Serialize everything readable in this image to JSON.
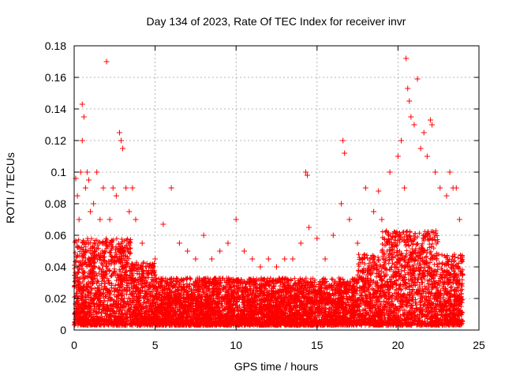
{
  "chart_data": {
    "type": "scatter",
    "title": "Day 134 of 2023, Rate Of TEC Index for receiver invr",
    "xlabel": "GPS time / hours",
    "ylabel": "ROTI / TECUs",
    "xlim": [
      0,
      25
    ],
    "ylim": [
      0,
      0.18
    ],
    "xticks": [
      0,
      5,
      10,
      15,
      20,
      25
    ],
    "xtick_labels": [
      "0",
      "5",
      "10",
      "15",
      "20",
      "25"
    ],
    "yticks": [
      0,
      0.02,
      0.04,
      0.06,
      0.08,
      0.1,
      0.12,
      0.14,
      0.16,
      0.18
    ],
    "ytick_labels": [
      "0",
      "0.02",
      "0.04",
      "0.06",
      "0.08",
      "0.1",
      "0.12",
      "0.14",
      "0.16",
      "0.18"
    ],
    "grid": true,
    "marker": "plus",
    "color": "#ff0000",
    "series": [
      {
        "x": [
          0.1,
          0.2,
          0.3,
          0.4,
          0.5,
          0.5,
          0.6,
          0.7,
          0.8,
          0.9,
          1.0,
          1.2,
          1.4,
          1.6,
          1.8,
          2.0,
          2.2,
          2.4,
          2.6,
          2.8,
          2.9,
          3.0,
          3.2,
          3.4,
          3.6,
          3.8,
          4.2,
          4.6,
          5.0,
          5.5,
          6.0,
          6.5,
          7.0,
          7.5,
          8.0,
          8.5,
          9.0,
          9.5,
          10.0,
          10.5,
          11.0,
          11.5,
          12.0,
          12.5,
          13.0,
          13.5,
          14.0,
          14.3,
          14.4,
          14.5,
          15.0,
          15.5,
          16.0,
          16.5,
          16.6,
          16.7,
          17.0,
          17.5,
          18.0,
          18.5,
          18.8,
          19.0,
          19.5,
          20.0,
          20.2,
          20.4,
          20.5,
          20.6,
          20.7,
          20.8,
          21.0,
          21.2,
          21.4,
          21.6,
          21.8,
          22.0,
          22.1,
          22.3,
          22.6,
          23.0,
          23.2,
          23.4,
          23.6,
          23.8,
          24.0,
          0.3,
          0.6,
          1.1,
          1.5,
          2.1,
          2.5,
          3.1,
          3.5,
          4.0,
          5.2,
          6.2,
          7.8,
          9.8,
          10.1,
          12.4,
          14.2,
          16.5,
          18.2,
          19.8,
          20.6,
          21.5,
          22.2,
          23.1,
          23.9
        ],
        "y": [
          0.096,
          0.085,
          0.07,
          0.1,
          0.143,
          0.12,
          0.135,
          0.09,
          0.1,
          0.095,
          0.075,
          0.08,
          0.1,
          0.07,
          0.09,
          0.17,
          0.07,
          0.09,
          0.085,
          0.125,
          0.12,
          0.115,
          0.09,
          0.075,
          0.09,
          0.07,
          0.055,
          0.04,
          0.045,
          0.067,
          0.09,
          0.055,
          0.05,
          0.045,
          0.06,
          0.045,
          0.05,
          0.055,
          0.07,
          0.05,
          0.045,
          0.04,
          0.045,
          0.04,
          0.045,
          0.045,
          0.055,
          0.1,
          0.098,
          0.065,
          0.058,
          0.045,
          0.06,
          0.08,
          0.12,
          0.112,
          0.07,
          0.055,
          0.09,
          0.075,
          0.088,
          0.07,
          0.1,
          0.11,
          0.12,
          0.09,
          0.172,
          0.153,
          0.145,
          0.135,
          0.13,
          0.159,
          0.115,
          0.125,
          0.11,
          0.133,
          0.13,
          0.1,
          0.09,
          0.085,
          0.1,
          0.09,
          0.09,
          0.07,
          0.035,
          0.03,
          0.025,
          0.03,
          0.02,
          0.03,
          0.025,
          0.02,
          0.03,
          0.025,
          0.015,
          0.02,
          0.015,
          0.02,
          0.025,
          0.015,
          0.02,
          0.025,
          0.03,
          0.035,
          0.04,
          0.03,
          0.035,
          0.03,
          0.02
        ]
      }
    ]
  }
}
